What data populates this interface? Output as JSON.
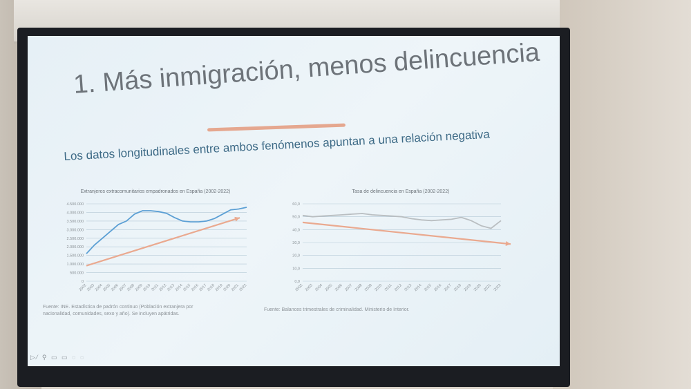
{
  "slide": {
    "title": "1. Más inmigración, menos delincuencia",
    "subtitle": "Los datos longitudinales entre ambos fenómenos apuntan a una relación negativa",
    "controls": "▷⁄ ⚲ ▭ ▭ ◌ ◌"
  },
  "colors": {
    "series_line": "#5b9fd4",
    "series_line_right": "#b9bec1",
    "trend_arrow": "#eaa98f",
    "grid": "#b5c9d6"
  },
  "chart_data": [
    {
      "type": "line",
      "title": "Extranjeros extracomunitarios empadronados en España (2002-2022)",
      "x": [
        "2002",
        "2003",
        "2004",
        "2005",
        "2006",
        "2007",
        "2008",
        "2009",
        "2010",
        "2011",
        "2012",
        "2013",
        "2014",
        "2015",
        "2016",
        "2017",
        "2018",
        "2019",
        "2020",
        "2021",
        "2022"
      ],
      "y_ticks": [
        "0",
        "500.000",
        "1.000.000",
        "1.500.000",
        "2.000.000",
        "2.500.000",
        "3.000.000",
        "3.500.000",
        "4.000.000",
        "4.500.000"
      ],
      "ylim": [
        0,
        4500000
      ],
      "series": [
        {
          "values": [
            1600000,
            2100000,
            2500000,
            2900000,
            3300000,
            3500000,
            3900000,
            4100000,
            4100000,
            4050000,
            3950000,
            3700000,
            3500000,
            3450000,
            3450000,
            3500000,
            3650000,
            3900000,
            4150000,
            4200000,
            4300000
          ]
        }
      ],
      "trend": "up",
      "source": "Fuente: INE. Estadística de padrón continuo (Población extranjera por nacionalidad, comunidades, sexo y año). Se incluyen apátridas."
    },
    {
      "type": "line",
      "title": "Tasa de delincuencia en España (2002-2022)",
      "x": [
        "2002",
        "2003",
        "2004",
        "2005",
        "2006",
        "2007",
        "2008",
        "2009",
        "2010",
        "2011",
        "2012",
        "2013",
        "2014",
        "2015",
        "2016",
        "2017",
        "2018",
        "2019",
        "2020",
        "2021",
        "2022"
      ],
      "y_ticks": [
        "0,0",
        "10,0",
        "20,0",
        "30,0",
        "40,0",
        "50,0",
        "60,0"
      ],
      "ylim": [
        0,
        60
      ],
      "series": [
        {
          "values": [
            51,
            50,
            50.5,
            51,
            51.5,
            52,
            52.5,
            51.5,
            51,
            50.5,
            50,
            48.5,
            47.5,
            47,
            47.5,
            48,
            49.5,
            47,
            43,
            41,
            47
          ]
        }
      ],
      "trend": "down",
      "source": "Fuente: Balances trimestrales de criminalidad. Ministerio de Interior."
    }
  ]
}
